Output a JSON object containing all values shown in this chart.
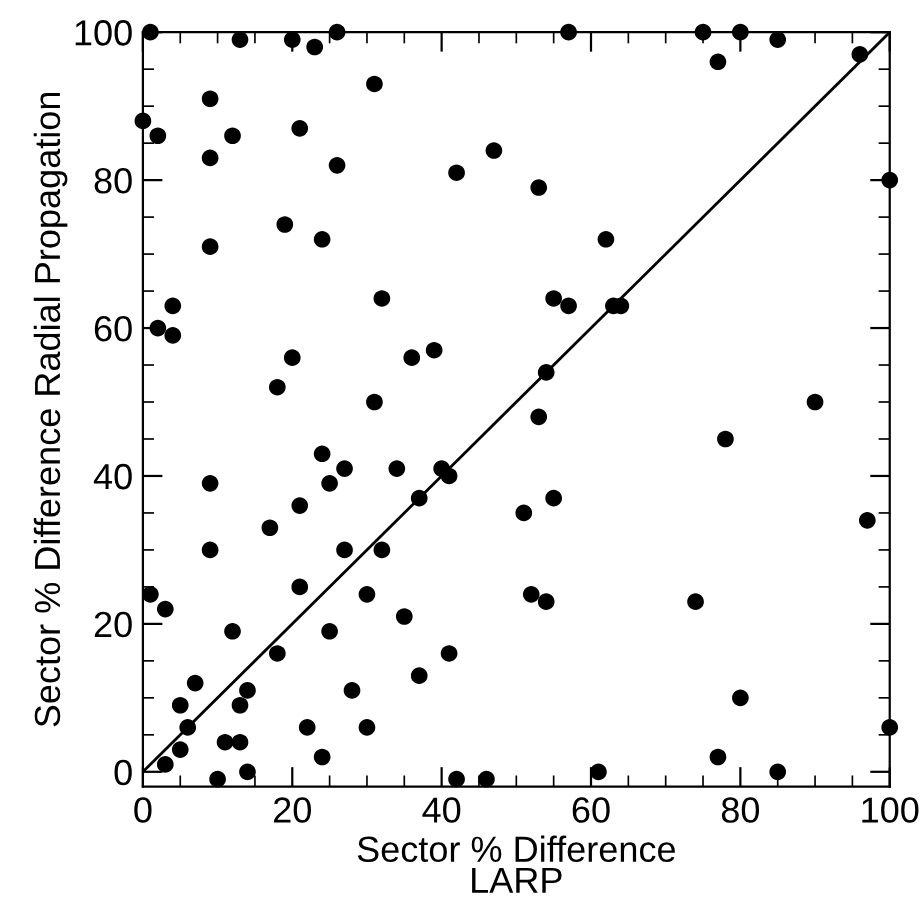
{
  "chart_data": {
    "type": "scatter",
    "xlabel": "Sector % Difference\nLARP",
    "ylabel": "Sector % Difference Radial Propagation",
    "xlim": [
      0,
      100
    ],
    "ylim": [
      -2,
      100
    ],
    "xticks": [
      0,
      20,
      40,
      60,
      80,
      100
    ],
    "yticks": [
      0,
      20,
      40,
      60,
      80,
      100
    ],
    "grid": false,
    "marker": "circle",
    "series": [
      {
        "color": "#000000",
        "x": [
          1,
          13,
          20,
          23,
          26,
          31,
          9,
          0,
          2,
          12,
          21,
          9,
          26,
          42,
          47,
          19,
          24,
          9,
          32,
          4,
          2,
          4,
          20,
          36,
          39,
          18,
          31,
          57,
          75,
          80,
          85,
          96,
          77,
          53,
          100,
          62,
          55,
          57,
          63,
          64,
          54,
          90,
          24,
          25,
          27,
          34,
          40,
          41,
          37,
          9,
          21,
          17,
          9,
          27,
          32,
          1,
          3,
          21,
          30,
          35,
          12,
          25,
          18,
          41,
          7,
          14,
          28,
          37,
          5,
          13,
          6,
          22,
          30,
          5,
          11,
          13,
          3,
          24,
          14,
          10,
          42,
          46,
          53,
          78,
          51,
          55,
          97,
          52,
          54,
          74,
          80,
          100,
          61,
          77,
          85
        ],
        "values": [
          100,
          99,
          99,
          98,
          100,
          93,
          91,
          88,
          86,
          86,
          87,
          83,
          82,
          81,
          84,
          74,
          72,
          71,
          64,
          63,
          60,
          59,
          56,
          56,
          57,
          52,
          50,
          100,
          100,
          100,
          99,
          97,
          96,
          79,
          80,
          72,
          64,
          63,
          63,
          63,
          54,
          50,
          43,
          39,
          41,
          41,
          41,
          40,
          37,
          39,
          36,
          33,
          30,
          30,
          30,
          24,
          22,
          25,
          24,
          21,
          19,
          19,
          16,
          16,
          12,
          11,
          11,
          13,
          9,
          9,
          6,
          6,
          6,
          3,
          4,
          4,
          1,
          2,
          0,
          -1,
          -1,
          -1,
          48,
          45,
          35,
          37,
          34,
          24,
          23,
          23,
          10,
          6,
          0,
          2,
          0
        ]
      },
      {
        "type": "line",
        "color": "#000000",
        "x": [
          0,
          100
        ],
        "values": [
          0,
          100
        ],
        "marker": "none",
        "line_style": "solid"
      }
    ]
  }
}
